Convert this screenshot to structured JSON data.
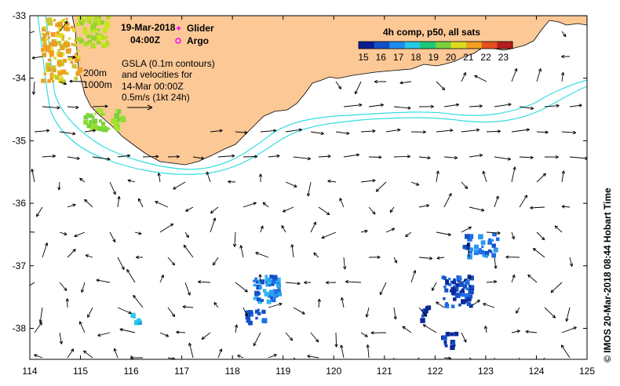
{
  "header": {
    "date": "19-Mar-2018",
    "time": "04:00Z"
  },
  "legend": {
    "glider_label": "Glider",
    "argo_label": "Argo",
    "glider_color": "#ff00ff",
    "argo_color": "#ff00ff"
  },
  "colorbar": {
    "title": "4h comp, p50, all sats",
    "tick_labels": [
      "15",
      "16",
      "17",
      "18",
      "19",
      "20",
      "21",
      "22",
      "23"
    ],
    "colors": [
      "#0a1f8f",
      "#1450c8",
      "#1e8cf0",
      "#28c8e6",
      "#1ec878",
      "#78d23c",
      "#dcdc1e",
      "#f0a01e",
      "#e6501e",
      "#b41e1e"
    ]
  },
  "annotations": {
    "gsla_lines": [
      "GSLA (0.1m contours)",
      "and velocities for",
      "14-Mar 00:00Z",
      "0.5m/s (1kt 24h)"
    ],
    "isobath_200": "200m",
    "isobath_1000": "1000m"
  },
  "axes": {
    "x_tick_labels": [
      "114",
      "115",
      "116",
      "117",
      "118",
      "119",
      "120",
      "121",
      "122",
      "123",
      "124",
      "125"
    ],
    "y_tick_labels": [
      "-33",
      "-34",
      "-35",
      "-36",
      "-37",
      "-38"
    ]
  },
  "credit": "© IMOS 20-Mar-2018 08:44 Hobart Time",
  "colors": {
    "land": "#fcc896",
    "isobath": "#33dddd",
    "frame": "#000000"
  }
}
